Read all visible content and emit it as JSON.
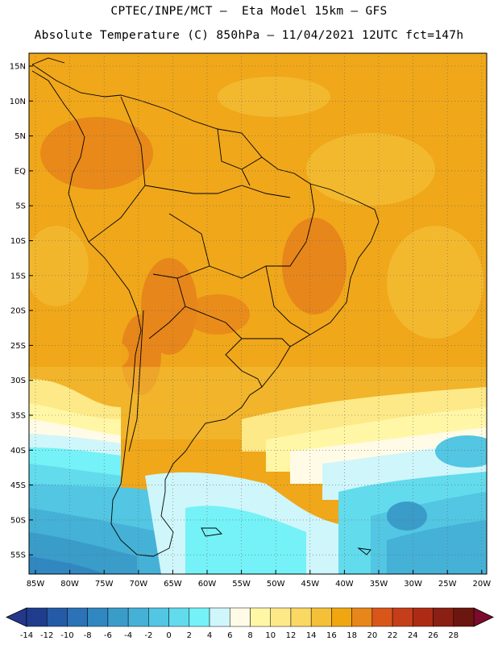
{
  "header": {
    "line1": "CPTEC/INPE/MCT –  Eta Model 15km – GFS",
    "line2": "Absolute Temperature (C) 850hPa – 11/04/2021 12UTC fct=147h"
  },
  "axes": {
    "lat_labels": [
      "15N",
      "10N",
      "5N",
      "EQ",
      "5S",
      "10S",
      "15S",
      "20S",
      "25S",
      "30S",
      "35S",
      "40S",
      "45S",
      "50S",
      "55S"
    ],
    "lon_labels": [
      "85W",
      "80W",
      "75W",
      "70W",
      "65W",
      "60W",
      "55W",
      "50W",
      "45W",
      "40W",
      "35W",
      "30W",
      "25W",
      "20W"
    ]
  },
  "colorbar": {
    "labels": [
      "-14",
      "-12",
      "-10",
      "-8",
      "-6",
      "-4",
      "-2",
      "0",
      "2",
      "4",
      "6",
      "8",
      "10",
      "12",
      "14",
      "16",
      "18",
      "20",
      "22",
      "24",
      "26",
      "28"
    ],
    "colors": [
      "#1f3d8c",
      "#255aa6",
      "#2b72b6",
      "#3187c0",
      "#3a9cc9",
      "#45b1d6",
      "#52c6e2",
      "#62dbec",
      "#74f2f7",
      "#cff6fb",
      "#fffbe6",
      "#fff7a6",
      "#fde987",
      "#f9d863",
      "#f3c038",
      "#f0a70f",
      "#e7861a",
      "#d9561b",
      "#c53e1a",
      "#ad2b15",
      "#8a1f14",
      "#6b160f"
    ],
    "low_color": "#23388a",
    "high_color": "#7b0a2c"
  }
}
